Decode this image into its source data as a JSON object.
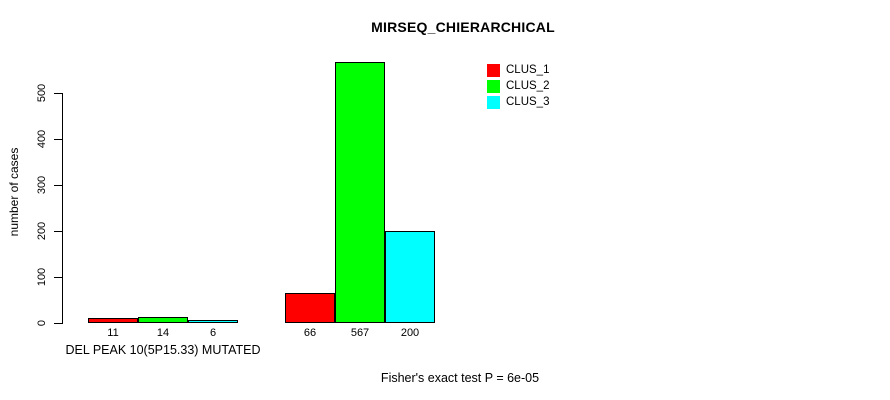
{
  "chart_data": {
    "type": "bar",
    "title": "MIRSEQ_CHIERARCHICAL",
    "ylabel": "number of cases",
    "xlabel": "",
    "ylim": [
      0,
      567
    ],
    "yticks": [
      0,
      100,
      200,
      300,
      400,
      500
    ],
    "grid": false,
    "groups": [
      {
        "label": "DEL PEAK 10(5P15.33) MUTATED"
      },
      {
        "label": ""
      }
    ],
    "series": [
      {
        "name": "CLUS_1",
        "color": "#ff0000",
        "values": [
          11,
          66
        ]
      },
      {
        "name": "CLUS_2",
        "color": "#00ff00",
        "values": [
          14,
          567
        ]
      },
      {
        "name": "CLUS_3",
        "color": "#00ffff",
        "values": [
          6,
          200
        ]
      }
    ],
    "bar_value_labels": [
      [
        11,
        14,
        6
      ],
      [
        66,
        567,
        200
      ]
    ],
    "legend": {
      "position": "top-right",
      "entries": [
        "CLUS_1",
        "CLUS_2",
        "CLUS_3"
      ],
      "colors": [
        "#ff0000",
        "#00ff00",
        "#00ffff"
      ]
    },
    "footnote": "Fisher's exact test P = 6e-05",
    "colors": {
      "background": "#ffffff",
      "axis": "#000000",
      "text": "#000000"
    }
  }
}
